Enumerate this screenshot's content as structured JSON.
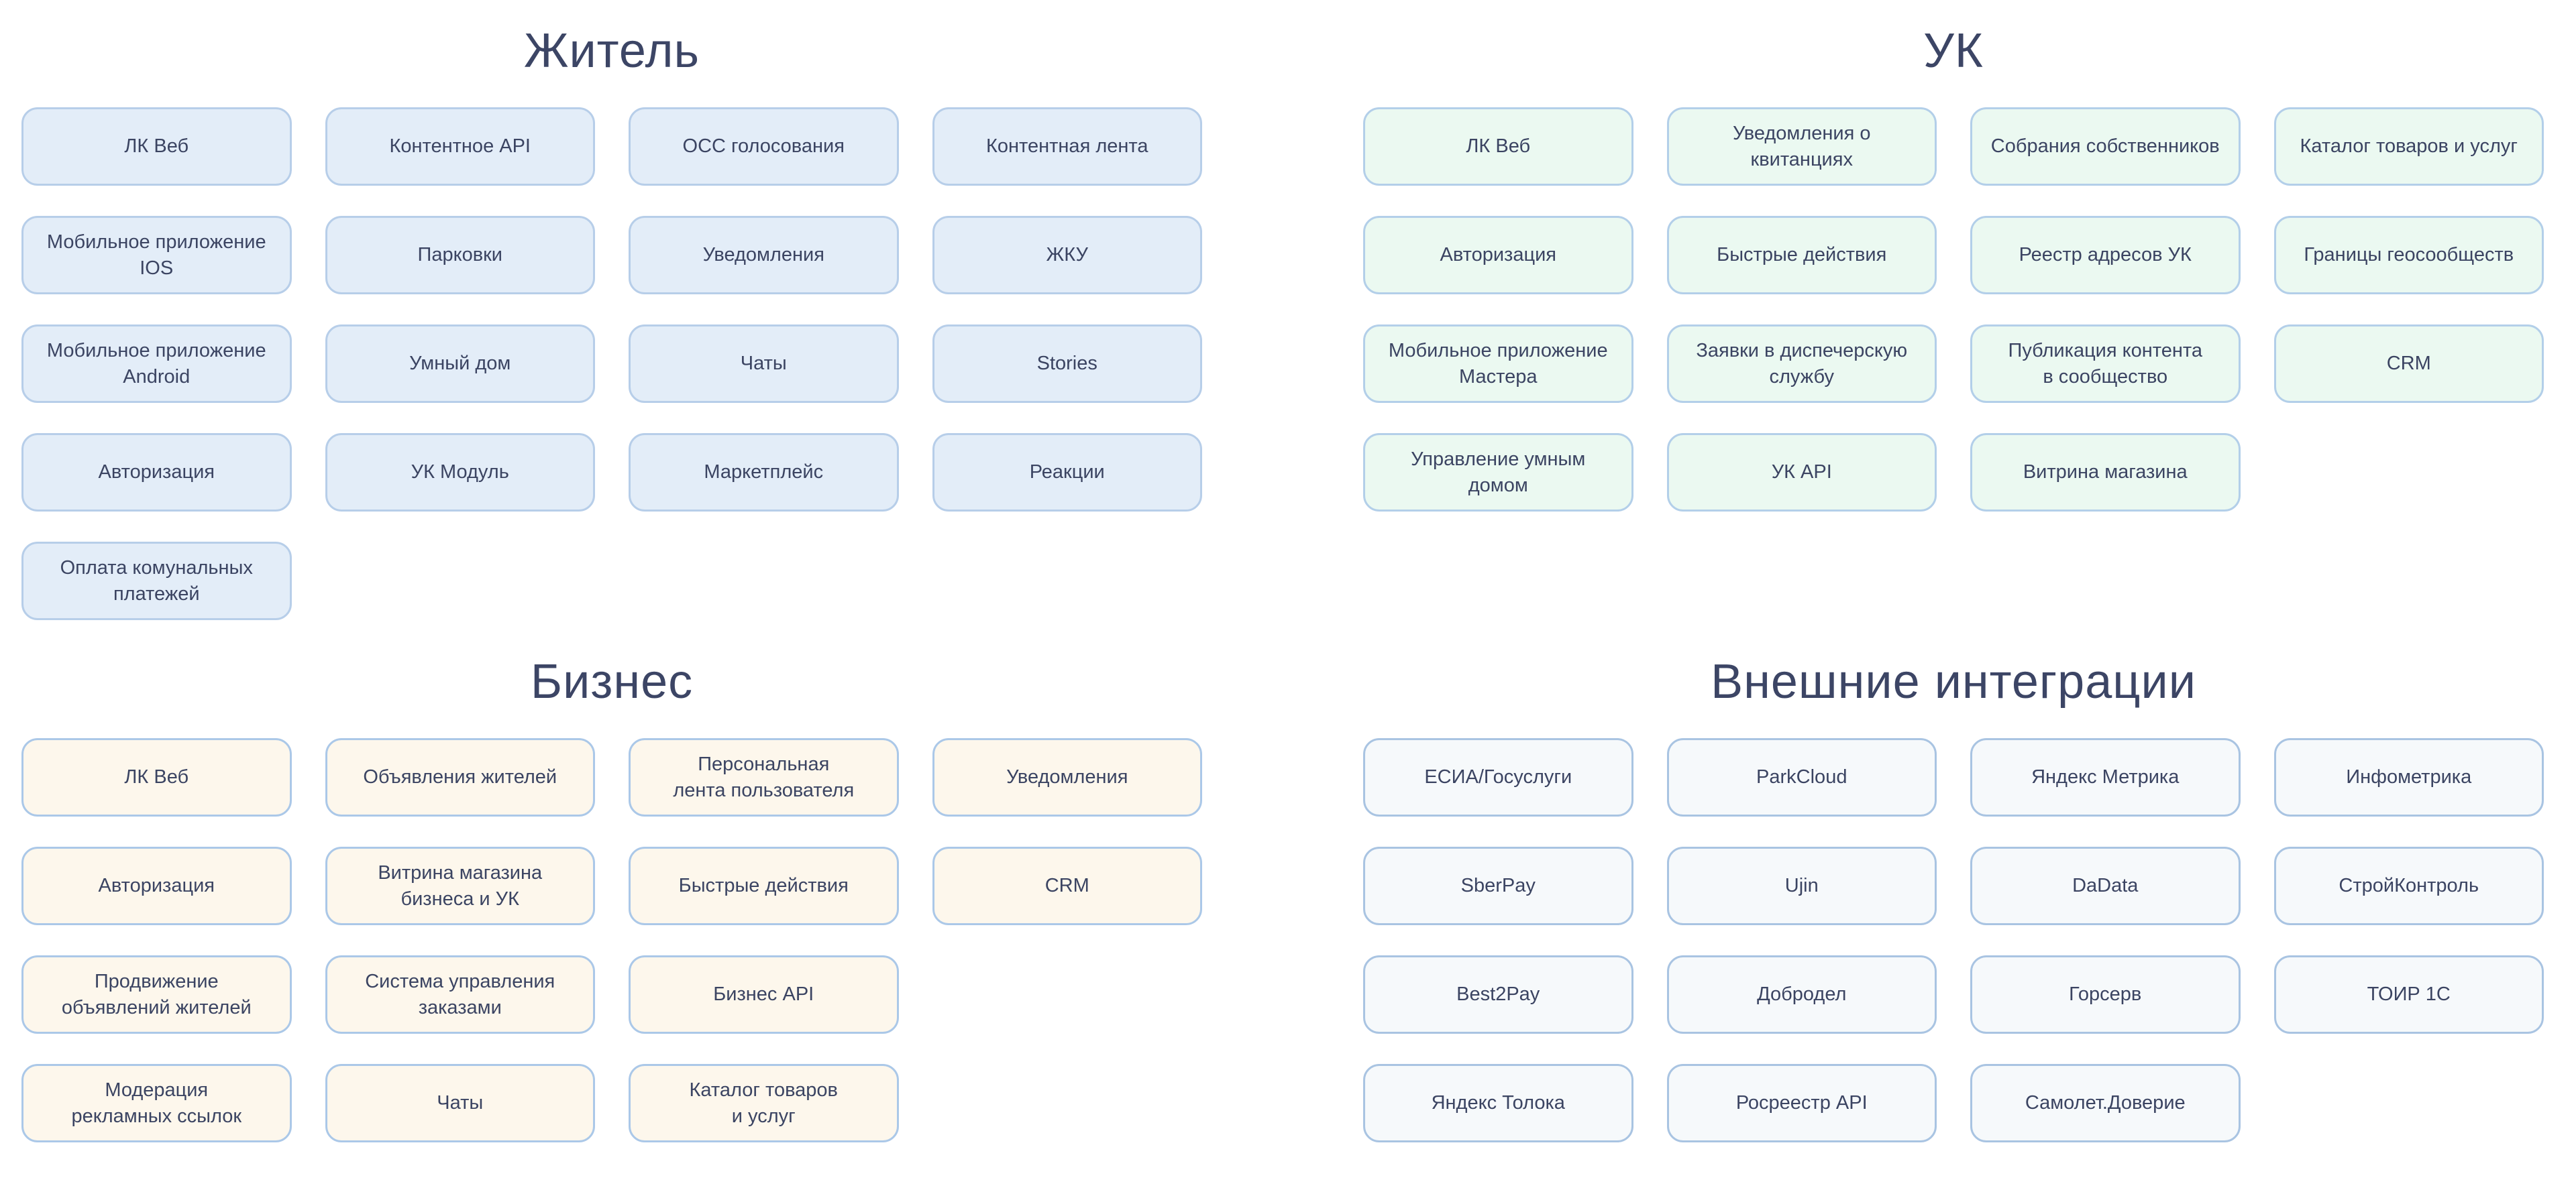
{
  "page": {
    "background": "#ffffff",
    "text_color": "#3b4462",
    "title_color": "#3c4565"
  },
  "sections": [
    {
      "id": "resident",
      "title": "Житель",
      "card_bg": "#e3edf8",
      "card_border": "#b7cee9",
      "rows": [
        [
          "ЛК Веб",
          "Контентное API",
          "ОСС голосования",
          "Контентная лента"
        ],
        [
          "Мобильное приложение\nIOS",
          "Парковки",
          "Уведомления",
          "ЖКУ"
        ],
        [
          "Мобильное приложение\nAndroid",
          "Умный дом",
          "Чаты",
          "Stories"
        ],
        [
          "Авторизация",
          "УК Модуль",
          "Маркетплейс",
          "Реакции"
        ],
        [
          "Оплата комунальных\nплатежей"
        ]
      ]
    },
    {
      "id": "uk",
      "title": "УК",
      "card_bg": "#ebf9f1",
      "card_border": "#b3cfe9",
      "rows": [
        [
          "ЛК Веб",
          "Уведомления о квитанциях",
          "Собрания собственников",
          "Каталог товаров и услуг"
        ],
        [
          "Авторизация",
          "Быстрые действия",
          "Реестр адресов УК",
          "Границы геосообществ"
        ],
        [
          "Мобильное приложение\nМастера",
          "Заявки в диспечерскую\nслужбу",
          "Публикация контента\nв сообщество",
          "CRM"
        ],
        [
          "Управление умным домом",
          "УК API",
          "Витрина магазина"
        ]
      ]
    },
    {
      "id": "business",
      "title": "Бизнес",
      "card_bg": "#fdf7ec",
      "card_border": "#abc8e8",
      "rows": [
        [
          "ЛК Веб",
          "Объявления жителей",
          "Персональная\nлента пользователя",
          "Уведомления"
        ],
        [
          "Авторизация",
          "Витрина магазина\nбизнеса и УК",
          "Быстрые действия",
          "CRM"
        ],
        [
          "Продвижение\nобъявлений жителей",
          "Система управления\nзаказами",
          "Бизнес API"
        ],
        [
          "Модерация\nрекламных ссылок",
          "Чаты",
          "Каталог товаров\nи услуг"
        ]
      ]
    },
    {
      "id": "external",
      "title": "Внешние интеграции",
      "card_bg": "#f6f9fb",
      "card_border": "#a9c4e2",
      "rows": [
        [
          "ЕСИА/Госуслуги",
          "ParkCloud",
          "Яндекс Метрика",
          "Инфометрика"
        ],
        [
          "SberPay",
          "Ujin",
          "DaData",
          "СтройКонтроль"
        ],
        [
          "Best2Pay",
          "Добродел",
          "Горсерв",
          "ТОИР 1С"
        ],
        [
          "Яндекс Толока",
          "Росреестр API",
          "Самолет.Доверие"
        ]
      ]
    }
  ]
}
